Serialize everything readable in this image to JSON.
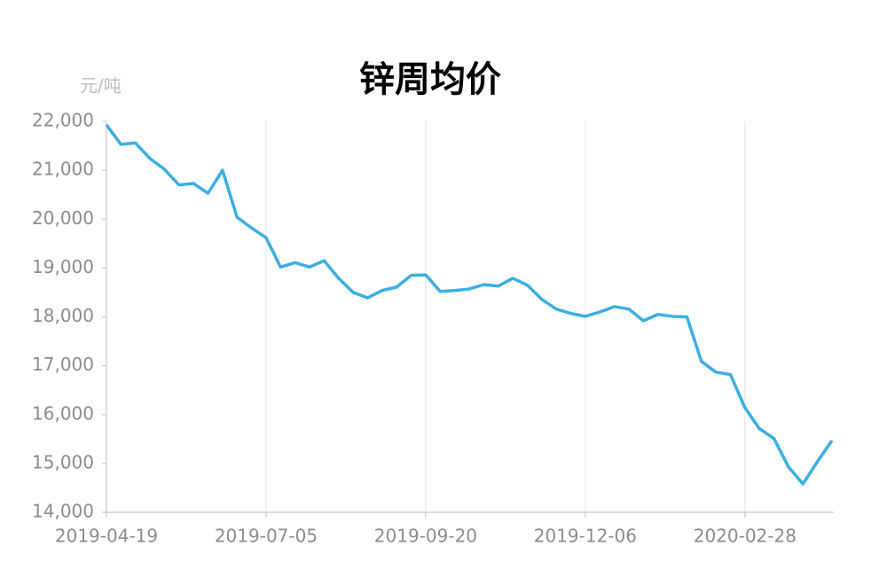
{
  "chart_data": {
    "type": "line",
    "title": "锌周均价",
    "y_label": "元/吨",
    "categories": [
      "2019-04-19",
      null,
      null,
      null,
      null,
      null,
      null,
      null,
      null,
      null,
      null,
      "2019-07-05",
      null,
      null,
      null,
      null,
      null,
      null,
      null,
      null,
      null,
      null,
      "2019-09-20",
      null,
      null,
      null,
      null,
      null,
      null,
      null,
      null,
      null,
      null,
      "2019-12-06",
      null,
      null,
      null,
      null,
      null,
      null,
      null,
      null,
      null,
      null,
      "2020-02-28",
      null,
      null,
      null,
      null,
      null,
      null
    ],
    "series": [
      {
        "color": "#3daee0",
        "values": [
          21930,
          21530,
          21560,
          21240,
          21020,
          20700,
          20730,
          20530,
          21000,
          20040,
          19820,
          19620,
          19020,
          19110,
          19020,
          19150,
          18790,
          18500,
          18390,
          18540,
          18610,
          18850,
          18860,
          18520,
          18540,
          18570,
          18660,
          18630,
          18790,
          18650,
          18360,
          18160,
          18070,
          18010,
          18100,
          18210,
          18160,
          17920,
          18050,
          18010,
          18000,
          17090,
          16870,
          16820,
          16140,
          15710,
          15510,
          14930,
          14580,
          15040,
          15470
        ]
      }
    ],
    "ylim": [
      14000,
      22000
    ],
    "yticks": [
      {
        "value": 14000,
        "label": "14,000"
      },
      {
        "value": 15000,
        "label": "15,000"
      },
      {
        "value": 16000,
        "label": "16,000"
      },
      {
        "value": 17000,
        "label": "17,000"
      },
      {
        "value": 18000,
        "label": "18,000"
      },
      {
        "value": 19000,
        "label": "19,000"
      },
      {
        "value": 20000,
        "label": "20,000"
      },
      {
        "value": 21000,
        "label": "21,000"
      },
      {
        "value": 22000,
        "label": "22,000"
      }
    ],
    "grid": "x"
  }
}
